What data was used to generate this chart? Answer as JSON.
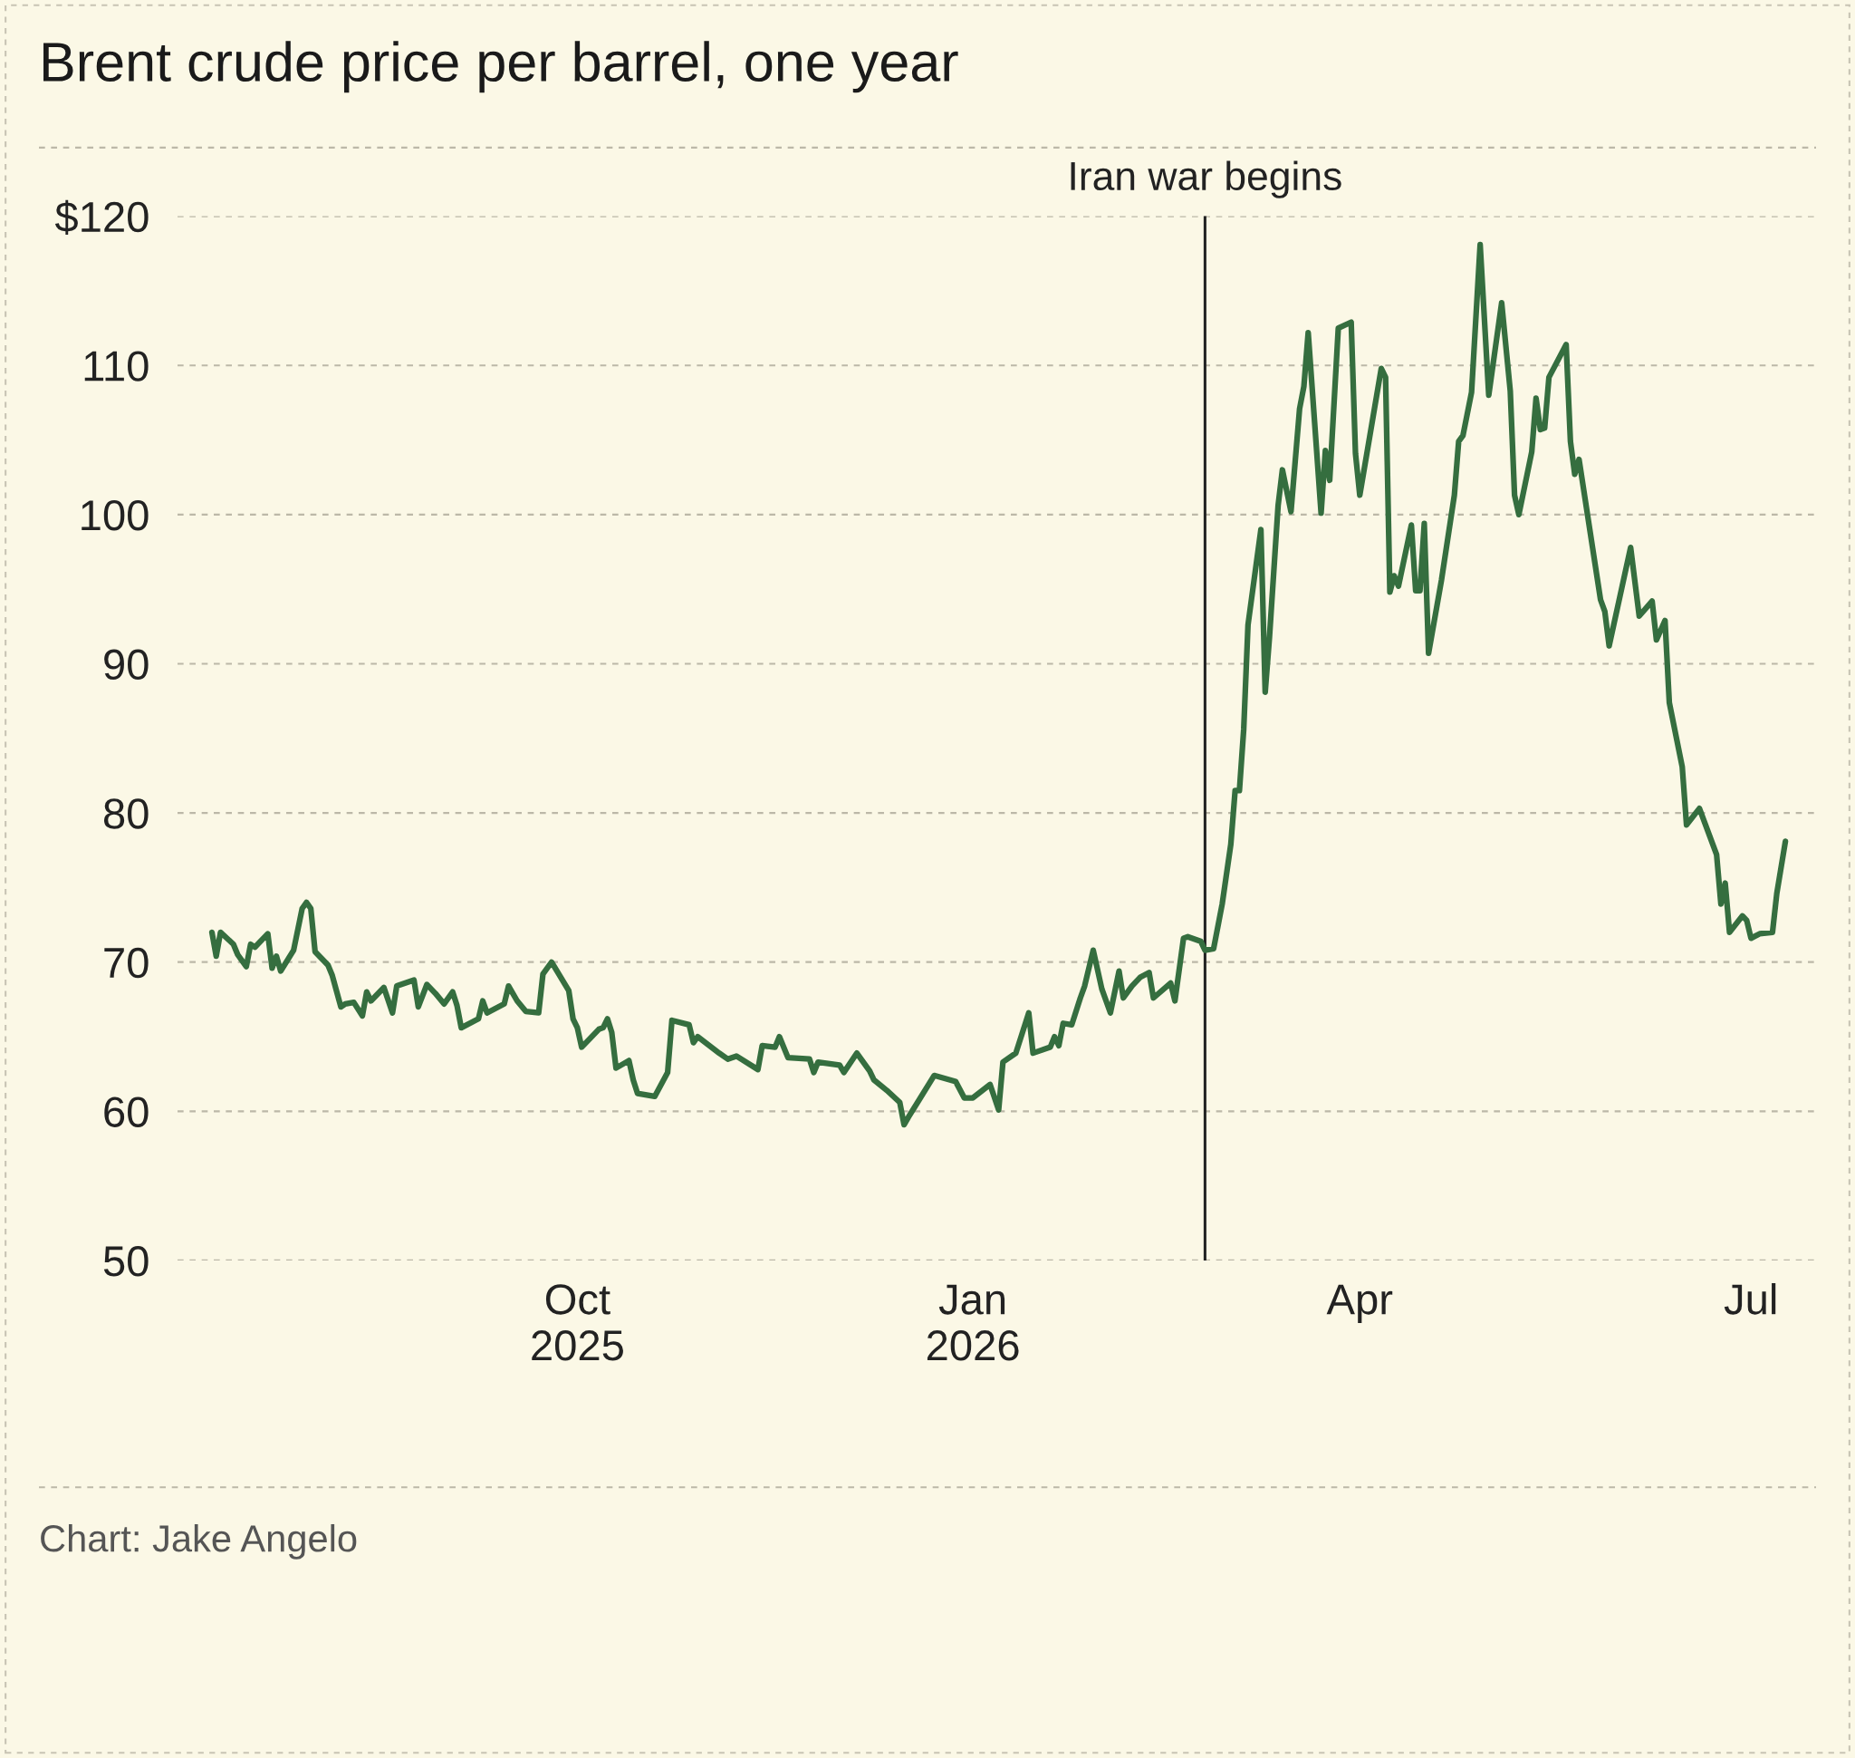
{
  "chart_data": {
    "type": "line",
    "title": "Brent crude price per barrel, one year",
    "annotations": [
      "Chart: Jake Angelo"
    ],
    "x": [
      "2025-07-08",
      "2025-07-09",
      "2025-07-10",
      "2025-07-13",
      "2025-07-14",
      "2025-07-16",
      "2025-07-17",
      "2025-07-18",
      "2025-07-21",
      "2025-07-22",
      "2025-07-23",
      "2025-07-24",
      "2025-07-27",
      "2025-07-29",
      "2025-07-30",
      "2025-07-31",
      "2025-08-01",
      "2025-08-04",
      "2025-08-05",
      "2025-08-07",
      "2025-08-08",
      "2025-08-10",
      "2025-08-12",
      "2025-08-13",
      "2025-08-14",
      "2025-08-17",
      "2025-08-19",
      "2025-08-20",
      "2025-08-24",
      "2025-08-25",
      "2025-08-27",
      "2025-08-29",
      "2025-08-31",
      "2025-09-02",
      "2025-09-03",
      "2025-09-04",
      "2025-09-08",
      "2025-09-09",
      "2025-09-10",
      "2025-09-14",
      "2025-09-15",
      "2025-09-17",
      "2025-09-19",
      "2025-09-22",
      "2025-09-23",
      "2025-09-25",
      "2025-09-29",
      "2025-09-30",
      "2025-10-01",
      "2025-10-02",
      "2025-10-06",
      "2025-10-07",
      "2025-10-08",
      "2025-10-09",
      "2025-10-10",
      "2025-10-13",
      "2025-10-14",
      "2025-10-15",
      "2025-10-19",
      "2025-10-22",
      "2025-10-23",
      "2025-10-27",
      "2025-10-28",
      "2025-10-29",
      "2025-11-03",
      "2025-11-05",
      "2025-11-07",
      "2025-11-12",
      "2025-11-13",
      "2025-11-16",
      "2025-11-17",
      "2025-11-19",
      "2025-11-24",
      "2025-11-25",
      "2025-11-26",
      "2025-12-01",
      "2025-12-02",
      "2025-12-05",
      "2025-12-08",
      "2025-12-09",
      "2025-12-12",
      "2025-12-15",
      "2025-12-16",
      "2025-12-17",
      "2025-12-23",
      "2025-12-28",
      "2025-12-30",
      "2026-01-01",
      "2026-01-05",
      "2026-01-07",
      "2026-01-08",
      "2026-01-11",
      "2026-01-14",
      "2026-01-15",
      "2026-01-19",
      "2026-01-20",
      "2026-01-21",
      "2026-01-22",
      "2026-01-24",
      "2026-01-26",
      "2026-01-27",
      "2026-01-29",
      "2026-01-31",
      "2026-02-02",
      "2026-02-04",
      "2026-02-05",
      "2026-02-07",
      "2026-02-09",
      "2026-02-11",
      "2026-02-12",
      "2026-02-16",
      "2026-02-17",
      "2026-02-19",
      "2026-02-20",
      "2026-02-23",
      "2026-02-24",
      "2026-02-26",
      "2026-02-28",
      "2026-03-02",
      "2026-03-03",
      "2026-03-04",
      "2026-03-05",
      "2026-03-06",
      "2026-03-09",
      "2026-03-10",
      "2026-03-11",
      "2026-03-13",
      "2026-03-14",
      "2026-03-16",
      "2026-03-18",
      "2026-03-19",
      "2026-03-20",
      "2026-03-23",
      "2026-03-24",
      "2026-03-25",
      "2026-03-27",
      "2026-03-30",
      "2026-03-31",
      "2026-04-01",
      "2026-04-06",
      "2026-04-07",
      "2026-04-08",
      "2026-04-09",
      "2026-04-10",
      "2026-04-13",
      "2026-04-14",
      "2026-04-15",
      "2026-04-16",
      "2026-04-17",
      "2026-04-20",
      "2026-04-23",
      "2026-04-24",
      "2026-04-25",
      "2026-04-27",
      "2026-04-29",
      "2026-05-01",
      "2026-05-04",
      "2026-05-06",
      "2026-05-07",
      "2026-05-08",
      "2026-05-11",
      "2026-05-12",
      "2026-05-13",
      "2026-05-14",
      "2026-05-15",
      "2026-05-19",
      "2026-05-20",
      "2026-05-21",
      "2026-05-22",
      "2026-05-27",
      "2026-05-28",
      "2026-05-29",
      "2026-06-03",
      "2026-06-05",
      "2026-06-08",
      "2026-06-09",
      "2026-06-11",
      "2026-06-12",
      "2026-06-15",
      "2026-06-16",
      "2026-06-19",
      "2026-06-23",
      "2026-06-24",
      "2026-06-25",
      "2026-06-26",
      "2026-06-29",
      "2026-06-30",
      "2026-07-01",
      "2026-07-03",
      "2026-07-06",
      "2026-07-07",
      "2026-07-09"
    ],
    "series": [
      {
        "color": "#356e3f",
        "values": [
          72.0,
          70.4,
          72.0,
          71.2,
          70.5,
          69.7,
          71.2,
          71.0,
          71.9,
          69.6,
          70.4,
          69.4,
          70.8,
          73.6,
          74.0,
          73.6,
          70.7,
          69.8,
          69.1,
          67.0,
          67.2,
          67.3,
          66.4,
          68.0,
          67.4,
          68.3,
          66.6,
          68.4,
          68.8,
          67.0,
          68.5,
          67.9,
          67.2,
          68.0,
          67.1,
          65.6,
          66.2,
          67.4,
          66.6,
          67.2,
          68.4,
          67.4,
          66.7,
          66.6,
          69.2,
          70.0,
          68.1,
          66.2,
          65.6,
          64.3,
          65.5,
          65.6,
          66.2,
          65.3,
          62.9,
          63.4,
          62.1,
          61.2,
          61.0,
          62.6,
          66.1,
          65.8,
          64.6,
          65.0,
          63.9,
          63.5,
          63.7,
          62.8,
          64.4,
          64.3,
          65.0,
          63.6,
          63.5,
          62.6,
          63.3,
          63.1,
          62.6,
          63.9,
          62.7,
          62.1,
          61.4,
          60.6,
          59.1,
          59.6,
          62.4,
          62.0,
          60.9,
          60.9,
          61.8,
          60.1,
          63.3,
          63.9,
          66.6,
          63.9,
          64.3,
          65.0,
          64.4,
          65.9,
          65.8,
          67.6,
          68.4,
          70.8,
          68.2,
          66.6,
          69.4,
          67.6,
          68.4,
          69.0,
          69.3,
          67.6,
          68.6,
          67.4,
          71.6,
          71.7,
          71.4,
          70.8,
          70.9,
          73.9,
          77.9,
          81.5,
          81.5,
          85.6,
          92.6,
          99.0,
          88.1,
          91.8,
          100.6,
          103.0,
          100.2,
          107.1,
          108.6,
          112.2,
          100.1,
          104.3,
          102.3,
          112.5,
          112.9,
          104.1,
          101.3,
          109.8,
          109.2,
          94.8,
          95.9,
          95.2,
          99.3,
          94.9,
          94.9,
          99.4,
          90.7,
          95.6,
          101.3,
          104.9,
          105.3,
          108.2,
          118.1,
          108.0,
          114.2,
          108.3,
          101.3,
          100.0,
          104.2,
          107.8,
          105.7,
          105.8,
          109.2,
          111.4,
          104.9,
          102.7,
          103.7,
          94.3,
          93.5,
          91.2,
          97.8,
          93.2,
          94.2,
          91.6,
          92.9,
          87.4,
          83.1,
          79.2,
          80.3,
          77.2,
          73.9,
          75.3,
          72.0,
          73.1,
          72.8,
          71.6,
          71.9,
          72.0,
          74.6,
          78.1
        ]
      }
    ],
    "xlim": [
      "2025-06-30",
      "2026-07-16"
    ],
    "xticks": [
      {
        "value": "2025-10-01",
        "label": "Oct\n2025"
      },
      {
        "value": "2026-01-01",
        "label": "Jan\n2026"
      },
      {
        "value": "2026-04-01",
        "label": "Apr"
      },
      {
        "value": "2026-07-01",
        "label": "Jul"
      }
    ],
    "ylim": [
      50,
      120
    ],
    "yticks": [
      50,
      60,
      70,
      80,
      90,
      100,
      110,
      {
        "value": 120,
        "label": "$120"
      }
    ],
    "grid": "y",
    "line_style": "solid",
    "marker": "none",
    "ref_lines": [
      {
        "axis": "x",
        "value": "2026-02-24",
        "label": "Iran war begins",
        "color": "#222222"
      }
    ]
  }
}
